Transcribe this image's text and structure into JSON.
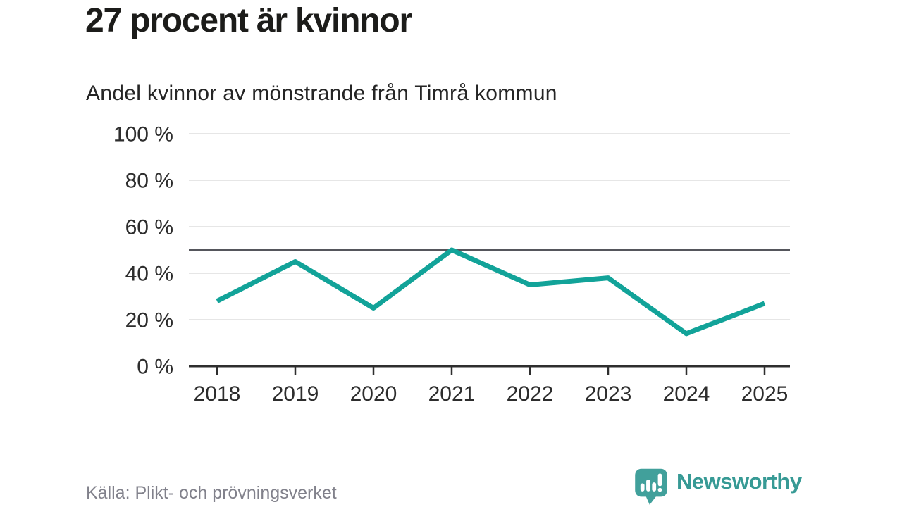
{
  "header": {
    "title": "27 procent är kvinnor",
    "subtitle": "Andel kvinnor av mönstrande från Timrå kommun"
  },
  "footer": {
    "source": "Källa: Plikt- och prövningsverket",
    "brand_name": "Newsworthy"
  },
  "colors": {
    "line": "#12a399",
    "reference": "#55565c",
    "grid": "#dddddd",
    "axis": "#2e2e2e",
    "tick_text": "#2d2d2d",
    "title_text": "#1c1c1a",
    "subtitle_text": "#252525",
    "muted_text": "#81818b",
    "brand": "#379a95",
    "brand_bubble": "#41a09b",
    "background": "#ffffff"
  },
  "chart_data": {
    "type": "line",
    "title": "27 procent är kvinnor",
    "subtitle": "Andel kvinnor av mönstrande från Timrå kommun",
    "source": "Källa: Plikt- och prövningsverket",
    "x": [
      "2018",
      "2019",
      "2020",
      "2021",
      "2022",
      "2023",
      "2024",
      "2025"
    ],
    "series": [
      {
        "name": "Andel kvinnor av mönstrande",
        "values": [
          28,
          45,
          25,
          50,
          35,
          38,
          14,
          27
        ]
      }
    ],
    "unit": "%",
    "ylim": [
      0,
      100
    ],
    "yticks": [
      {
        "value": 0,
        "label": "0 %"
      },
      {
        "value": 20,
        "label": "20 %"
      },
      {
        "value": 40,
        "label": "40 %"
      },
      {
        "value": 60,
        "label": "60 %"
      },
      {
        "value": 80,
        "label": "80 %"
      },
      {
        "value": 100,
        "label": "100 %"
      }
    ],
    "reference_line": 50,
    "grid": true,
    "legend": "none"
  }
}
